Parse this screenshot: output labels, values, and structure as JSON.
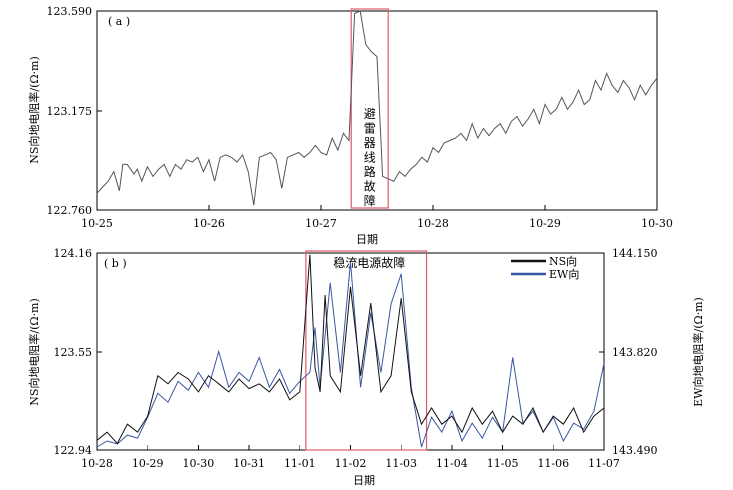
{
  "chart_data": [
    {
      "type": "line",
      "panel_label": "( a )",
      "xlabel": "",
      "ylabel": "NS向地电阻率/(Ω·m)",
      "x_ticks": [
        "10-25",
        "10-26",
        "10-27",
        "10-28",
        "10-29",
        "10-30"
      ],
      "y_ticks": [
        "122.760",
        "123.175",
        "123.590"
      ],
      "ylim": [
        122.76,
        123.59
      ],
      "x_range": [
        0,
        5
      ],
      "annotation": "避雷器线路故障",
      "highlight": {
        "x_start": 0.27,
        "x_end": 0.6,
        "color": "#e05a6a"
      },
      "series": [
        {
          "color": "#555555",
          "x": [
            0.0,
            0.04,
            0.1,
            0.15,
            0.2,
            0.23,
            0.27,
            0.3,
            0.33,
            0.36,
            0.4,
            0.45,
            0.5,
            0.55,
            0.6,
            0.65,
            0.7,
            0.75,
            0.8,
            0.85,
            0.9,
            0.95,
            1.0,
            1.05,
            1.1,
            1.15,
            1.2,
            1.25,
            1.3,
            1.35,
            1.4,
            1.45,
            1.5,
            1.55,
            1.6,
            1.65,
            1.7,
            1.75,
            1.8,
            1.85,
            1.9,
            1.95,
            2.0,
            2.05,
            2.1,
            2.15,
            2.2,
            2.25,
            2.3,
            2.35,
            2.4,
            2.45,
            2.5,
            2.55,
            2.6,
            2.65,
            2.7,
            2.75,
            2.8,
            2.85,
            2.9,
            2.95,
            3.0,
            3.05,
            3.1,
            3.15,
            3.2,
            3.25,
            3.3,
            3.35,
            3.4,
            3.45,
            3.5,
            3.55,
            3.6,
            3.65,
            3.7,
            3.75,
            3.8,
            3.85,
            3.9,
            3.95,
            4.0,
            4.05,
            4.1,
            4.15,
            4.2,
            4.25,
            4.3,
            4.35,
            4.4,
            4.45,
            4.5,
            4.55,
            4.6,
            4.65,
            4.7,
            4.75,
            4.8,
            4.85,
            4.9,
            4.95,
            5.0
          ],
          "y": [
            122.83,
            122.85,
            122.88,
            122.92,
            122.84,
            122.95,
            122.95,
            122.93,
            122.91,
            122.93,
            122.88,
            122.94,
            122.9,
            122.93,
            122.95,
            122.9,
            122.95,
            122.93,
            122.97,
            122.96,
            122.98,
            122.92,
            122.97,
            122.88,
            122.98,
            122.99,
            122.98,
            122.96,
            122.99,
            122.92,
            122.78,
            122.98,
            122.99,
            123.0,
            122.97,
            122.85,
            122.98,
            122.99,
            123.0,
            122.98,
            123.0,
            123.03,
            123.0,
            122.99,
            123.06,
            123.01,
            123.08,
            123.05,
            123.58,
            123.59,
            123.45,
            123.42,
            123.4,
            122.9,
            122.89,
            122.88,
            122.92,
            122.9,
            122.93,
            122.95,
            122.98,
            122.96,
            123.02,
            123.0,
            123.04,
            123.05,
            123.06,
            123.08,
            123.05,
            123.12,
            123.06,
            123.1,
            123.07,
            123.1,
            123.12,
            123.08,
            123.13,
            123.15,
            123.11,
            123.14,
            123.18,
            123.12,
            123.2,
            123.16,
            123.18,
            123.23,
            123.18,
            123.21,
            123.26,
            123.2,
            123.22,
            123.3,
            123.26,
            123.33,
            123.28,
            123.25,
            123.3,
            123.27,
            123.22,
            123.28,
            123.24,
            123.28,
            123.31
          ]
        }
      ]
    },
    {
      "type": "line",
      "panel_label": "( b )",
      "xlabel": "日期",
      "ylabel_left": "NS向地电阻率/(Ω·m)",
      "ylabel_right": "EW向地电阻率/(Ω·m)",
      "x_ticks": [
        "10-28",
        "10-29",
        "10-30",
        "10-31",
        "11-01",
        "11-02",
        "11-03",
        "11-04",
        "11-05",
        "11-06",
        "11-07"
      ],
      "y_ticks_left": [
        "122.94",
        "123.55",
        "124.16"
      ],
      "y_ticks_right": [
        "143.490",
        "143.820",
        "144.150"
      ],
      "ylim_left": [
        122.94,
        124.16
      ],
      "ylim_right": [
        143.49,
        144.15
      ],
      "x_range": [
        0,
        10
      ],
      "annotation": "稳流电源故障",
      "highlight": {
        "x_start": 4.12,
        "x_end": 6.5,
        "color": "#e05a6a"
      },
      "legend": [
        "NS向",
        "EW向"
      ],
      "series": [
        {
          "name": "NS向",
          "color": "#111111",
          "axis": "left",
          "x": [
            0.0,
            0.2,
            0.4,
            0.6,
            0.8,
            1.0,
            1.2,
            1.4,
            1.6,
            1.8,
            2.0,
            2.2,
            2.4,
            2.6,
            2.8,
            3.0,
            3.2,
            3.4,
            3.6,
            3.8,
            4.0,
            4.2,
            4.3,
            4.4,
            4.5,
            4.6,
            4.8,
            5.0,
            5.2,
            5.4,
            5.6,
            5.8,
            6.0,
            6.2,
            6.4,
            6.6,
            6.8,
            7.0,
            7.2,
            7.4,
            7.6,
            7.8,
            8.0,
            8.2,
            8.4,
            8.6,
            8.8,
            9.0,
            9.2,
            9.4,
            9.6,
            9.8,
            10.0
          ],
          "y": [
            123.0,
            123.05,
            122.98,
            123.1,
            123.05,
            123.15,
            123.4,
            123.35,
            123.42,
            123.38,
            123.3,
            123.4,
            123.35,
            123.3,
            123.38,
            123.32,
            123.35,
            123.3,
            123.38,
            123.25,
            123.3,
            124.15,
            123.45,
            123.3,
            123.9,
            123.4,
            123.3,
            123.95,
            123.4,
            123.85,
            123.3,
            123.4,
            123.88,
            123.3,
            123.1,
            123.2,
            123.1,
            123.15,
            123.05,
            123.2,
            123.1,
            123.18,
            123.05,
            123.15,
            123.1,
            123.2,
            123.05,
            123.15,
            123.1,
            123.2,
            123.05,
            123.15,
            123.2
          ]
        },
        {
          "name": "EW向",
          "color": "#3a55a4",
          "axis": "right",
          "x": [
            0.0,
            0.2,
            0.4,
            0.6,
            0.8,
            1.0,
            1.2,
            1.4,
            1.6,
            1.8,
            2.0,
            2.2,
            2.4,
            2.6,
            2.8,
            3.0,
            3.2,
            3.4,
            3.6,
            3.8,
            4.0,
            4.2,
            4.3,
            4.4,
            4.6,
            4.8,
            5.0,
            5.2,
            5.4,
            5.6,
            5.8,
            6.0,
            6.2,
            6.4,
            6.6,
            6.8,
            7.0,
            7.2,
            7.4,
            7.6,
            7.8,
            8.0,
            8.2,
            8.4,
            8.6,
            8.8,
            9.0,
            9.2,
            9.4,
            9.6,
            9.8,
            10.0
          ],
          "y": [
            143.5,
            143.52,
            143.51,
            143.54,
            143.53,
            143.6,
            143.68,
            143.65,
            143.72,
            143.69,
            143.75,
            143.7,
            143.82,
            143.7,
            143.75,
            143.72,
            143.8,
            143.7,
            143.76,
            143.68,
            143.72,
            143.75,
            143.9,
            143.7,
            144.05,
            143.75,
            144.12,
            143.7,
            143.95,
            143.75,
            143.98,
            144.08,
            143.7,
            143.5,
            143.6,
            143.55,
            143.62,
            143.52,
            143.58,
            143.53,
            143.6,
            143.55,
            143.8,
            143.58,
            143.62,
            143.55,
            143.6,
            143.52,
            143.58,
            143.56,
            143.62,
            143.78
          ]
        }
      ]
    }
  ],
  "xlabel_bottom": "日期"
}
